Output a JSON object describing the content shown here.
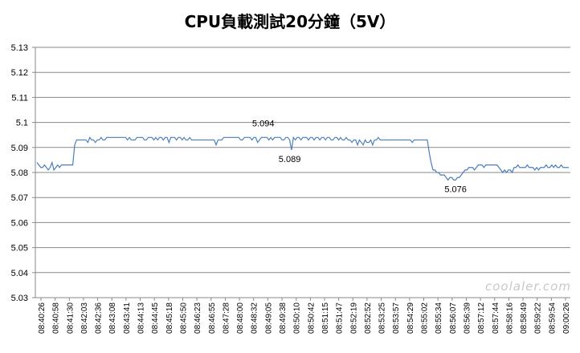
{
  "chart_data": {
    "type": "line",
    "title": "CPU負載測試20分鐘（5V）",
    "ylim": [
      5.03,
      5.13
    ],
    "yticks": [
      5.03,
      5.04,
      5.05,
      5.06,
      5.07,
      5.08,
      5.09,
      5.1,
      5.11,
      5.12,
      5.13
    ],
    "ytick_labels": [
      "5.03",
      "5.04",
      "5.05",
      "5.06",
      "5.07",
      "5.08",
      "5.09",
      "5.1",
      "5.11",
      "5.12",
      "5.13"
    ],
    "grid": true,
    "legend": "none",
    "line_color": "#4a7ebb",
    "xtick_labels": [
      "08:40:26",
      "08:40:58",
      "08:41:30",
      "08:42:03",
      "08:42:36",
      "08:43:08",
      "08:43:41",
      "08:44:13",
      "08:44:45",
      "08:45:18",
      "08:45:50",
      "08:46:23",
      "08:46:55",
      "08:47:28",
      "08:48:00",
      "08:48:32",
      "08:49:05",
      "08:49:38",
      "08:50:10",
      "08:50:42",
      "08:51:15",
      "08:51:47",
      "08:52:19",
      "08:52:52",
      "08:53:25",
      "08:53:57",
      "08:54:29",
      "08:55:02",
      "08:55:34",
      "08:56:07",
      "08:56:39",
      "08:57:12",
      "08:57:44",
      "08:58:16",
      "08:58:49",
      "08:59:22",
      "08:59:54",
      "09:00:26"
    ],
    "series": [
      {
        "values": [
          5.084,
          5.083,
          5.082,
          5.082,
          5.083,
          5.082,
          5.081,
          5.082,
          5.084,
          5.081,
          5.082,
          5.083,
          5.082,
          5.083,
          5.083,
          5.083,
          5.083,
          5.083,
          5.083,
          5.083,
          5.091,
          5.093,
          5.093,
          5.093,
          5.093,
          5.093,
          5.093,
          5.092,
          5.094,
          5.093,
          5.093,
          5.092,
          5.093,
          5.093,
          5.094,
          5.093,
          5.093,
          5.094,
          5.094,
          5.094,
          5.094,
          5.094,
          5.094,
          5.094,
          5.094,
          5.094,
          5.094,
          5.094,
          5.093,
          5.094,
          5.093,
          5.093,
          5.093,
          5.094,
          5.094,
          5.094,
          5.094,
          5.093,
          5.093,
          5.094,
          5.094,
          5.094,
          5.093,
          5.094,
          5.093,
          5.094,
          5.094,
          5.093,
          5.094,
          5.094,
          5.092,
          5.094,
          5.094,
          5.094,
          5.093,
          5.094,
          5.094,
          5.093,
          5.094,
          5.093,
          5.093,
          5.094,
          5.093,
          5.093,
          5.093,
          5.093,
          5.093,
          5.093,
          5.093,
          5.093,
          5.093,
          5.093,
          5.093,
          5.093,
          5.093,
          5.091,
          5.093,
          5.093,
          5.093,
          5.094,
          5.094,
          5.094,
          5.094,
          5.094,
          5.094,
          5.094,
          5.094,
          5.094,
          5.093,
          5.093,
          5.094,
          5.094,
          5.094,
          5.094,
          5.093,
          5.094,
          5.094,
          5.092,
          5.093,
          5.094,
          5.094,
          5.094,
          5.094,
          5.093,
          5.094,
          5.093,
          5.094,
          5.094,
          5.094,
          5.094,
          5.093,
          5.093,
          5.094,
          5.094,
          5.093,
          5.089,
          5.094,
          5.093,
          5.094,
          5.094,
          5.093,
          5.094,
          5.094,
          5.094,
          5.093,
          5.094,
          5.094,
          5.093,
          5.094,
          5.094,
          5.093,
          5.094,
          5.094,
          5.093,
          5.094,
          5.094,
          5.093,
          5.093,
          5.094,
          5.094,
          5.093,
          5.094,
          5.093,
          5.093,
          5.094,
          5.093,
          5.093,
          5.092,
          5.093,
          5.093,
          5.091,
          5.093,
          5.092,
          5.091,
          5.093,
          5.092,
          5.092,
          5.093,
          5.091,
          5.093,
          5.093,
          5.094,
          5.093,
          5.093,
          5.093,
          5.093,
          5.093,
          5.093,
          5.093,
          5.093,
          5.093,
          5.093,
          5.093,
          5.093,
          5.093,
          5.093,
          5.093,
          5.093,
          5.093,
          5.092,
          5.093,
          5.093,
          5.093,
          5.093,
          5.093,
          5.093,
          5.093,
          5.093,
          5.088,
          5.084,
          5.081,
          5.081,
          5.08,
          5.08,
          5.079,
          5.079,
          5.079,
          5.078,
          5.077,
          5.078,
          5.078,
          5.077,
          5.077,
          5.078,
          5.078,
          5.079,
          5.08,
          5.081,
          5.081,
          5.082,
          5.082,
          5.082,
          5.081,
          5.082,
          5.083,
          5.083,
          5.083,
          5.082,
          5.083,
          5.083,
          5.083,
          5.083,
          5.083,
          5.083,
          5.083,
          5.082,
          5.081,
          5.08,
          5.081,
          5.08,
          5.081,
          5.081,
          5.08,
          5.082,
          5.082,
          5.083,
          5.082,
          5.082,
          5.082,
          5.082,
          5.083,
          5.082,
          5.082,
          5.082,
          5.081,
          5.082,
          5.081,
          5.082,
          5.082,
          5.082,
          5.083,
          5.082,
          5.082,
          5.083,
          5.082,
          5.083,
          5.082,
          5.082,
          5.083,
          5.082,
          5.082,
          5.082,
          5.082
        ]
      }
    ],
    "annotations": [
      {
        "text": "5.094",
        "x_index": 120,
        "y": 5.094,
        "place": "above"
      },
      {
        "text": "5.089",
        "x_index": 134,
        "y": 5.089,
        "place": "below"
      },
      {
        "text": "5.076",
        "x_index": 222,
        "y": 5.077,
        "place": "below"
      }
    ]
  },
  "watermark": "coolaler.com"
}
